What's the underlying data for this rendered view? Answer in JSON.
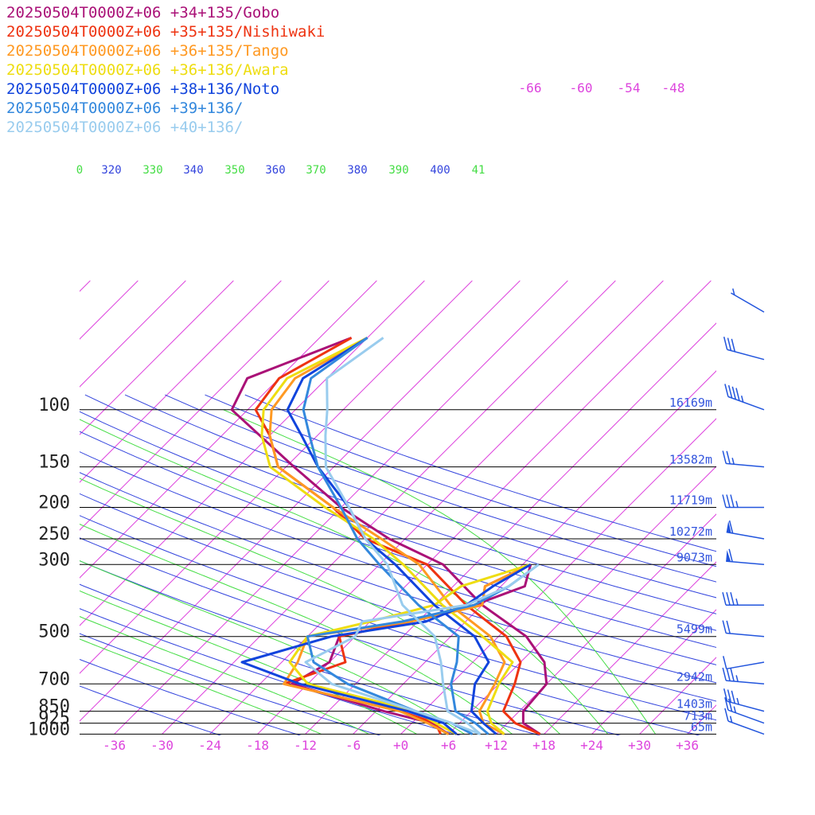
{
  "chart_data": {
    "type": "line",
    "title": "",
    "xlabel": "",
    "ylabel": "",
    "x_ticks": [
      "-36",
      "-30",
      "-24",
      "-18",
      "-12",
      "-6",
      "+0",
      "+6",
      "+12",
      "+18",
      "+24",
      "+30",
      "+36"
    ],
    "x_tick_values": [
      -36,
      -30,
      -24,
      -18,
      -12,
      -6,
      0,
      6,
      12,
      18,
      24,
      30,
      36
    ],
    "pressure_levels": [
      {
        "p": 100,
        "label": "100",
        "height": "16169m"
      },
      {
        "p": 150,
        "label": "150",
        "height": "13582m"
      },
      {
        "p": 200,
        "label": "200",
        "height": "11719m"
      },
      {
        "p": 250,
        "label": "250",
        "height": "10272m"
      },
      {
        "p": 300,
        "label": "300",
        "height": "9073m"
      },
      {
        "p": 500,
        "label": "500",
        "height": "5499m"
      },
      {
        "p": 700,
        "label": "700",
        "height": "2942m"
      },
      {
        "p": 850,
        "label": "850",
        "height": "1403m"
      },
      {
        "p": 925,
        "label": "925",
        "height": "713m"
      },
      {
        "p": 1000,
        "label": "1000",
        "height": "65m"
      }
    ],
    "upper_temp_labels": [
      "-66",
      "-60",
      "-54",
      "-48"
    ],
    "theta_labels": [
      "0",
      "320",
      "330",
      "340",
      "350",
      "360",
      "370",
      "380",
      "390",
      "400",
      "41"
    ],
    "colors": {
      "skewed_isotherm": "#dd44dd",
      "theta_dry": "#3344dd",
      "theta_moist": "#44dd44",
      "wind": "#2255dd"
    },
    "series": [
      {
        "name": "20250504T0000Z+06 +34+135/Gobo",
        "color": "#aa1177",
        "temp": [
          [
            1000,
            17.5
          ],
          [
            925,
            14
          ],
          [
            850,
            12.5
          ],
          [
            700,
            12
          ],
          [
            600,
            9
          ],
          [
            500,
            3.5
          ],
          [
            400,
            -6
          ],
          [
            300,
            -16
          ],
          [
            250,
            -26
          ],
          [
            200,
            -36
          ],
          [
            150,
            -47
          ],
          [
            100,
            -62
          ],
          [
            80,
            -64
          ],
          [
            60,
            -56
          ]
        ],
        "dewpoint": [
          [
            1000,
            6
          ],
          [
            925,
            2.5
          ],
          [
            850,
            -5
          ],
          [
            700,
            -20
          ],
          [
            600,
            -18
          ],
          [
            500,
            -20
          ],
          [
            450,
            -13
          ],
          [
            400,
            -7
          ],
          [
            350,
            -3
          ],
          [
            300,
            -5
          ]
        ]
      },
      {
        "name": "20250504T0000Z+06 +35+135/Nishiwaki",
        "color": "#ee3311",
        "temp": [
          [
            1000,
            17.5
          ],
          [
            925,
            13
          ],
          [
            850,
            10
          ],
          [
            700,
            8
          ],
          [
            600,
            6
          ],
          [
            500,
            1
          ],
          [
            400,
            -8
          ],
          [
            300,
            -18
          ],
          [
            250,
            -29
          ],
          [
            200,
            -37
          ],
          [
            150,
            -49
          ],
          [
            120,
            -54
          ],
          [
            100,
            -59
          ],
          [
            80,
            -60
          ],
          [
            60,
            -56
          ]
        ],
        "dewpoint": [
          [
            1000,
            5
          ],
          [
            925,
            3
          ],
          [
            850,
            -3
          ],
          [
            700,
            -21
          ],
          [
            600,
            -16
          ],
          [
            500,
            -20
          ],
          [
            450,
            -13
          ],
          [
            400,
            -6
          ],
          [
            350,
            -8
          ],
          [
            300,
            -5
          ]
        ]
      },
      {
        "name": "20250504T0000Z+06 +36+135/Tango",
        "color": "#ff9922",
        "temp": [
          [
            1000,
            13
          ],
          [
            925,
            9
          ],
          [
            850,
            7
          ],
          [
            700,
            5.5
          ],
          [
            600,
            4
          ],
          [
            500,
            -1
          ],
          [
            400,
            -10
          ],
          [
            300,
            -19
          ],
          [
            250,
            -27
          ],
          [
            200,
            -37
          ],
          [
            150,
            -49
          ],
          [
            120,
            -54
          ],
          [
            100,
            -57
          ],
          [
            80,
            -58
          ],
          [
            60,
            -54
          ]
        ],
        "dewpoint": [
          [
            1000,
            6
          ],
          [
            925,
            2
          ],
          [
            850,
            -3
          ],
          [
            700,
            -21
          ],
          [
            600,
            -22
          ],
          [
            500,
            -24
          ],
          [
            450,
            -13
          ],
          [
            400,
            -6
          ],
          [
            350,
            -8
          ],
          [
            300,
            -5
          ]
        ]
      },
      {
        "name": "20250504T0000Z+06 +36+136/Awara",
        "color": "#eedd11",
        "temp": [
          [
            1000,
            13
          ],
          [
            925,
            10
          ],
          [
            850,
            8
          ],
          [
            700,
            6
          ],
          [
            600,
            5
          ],
          [
            500,
            -2
          ],
          [
            400,
            -11
          ],
          [
            300,
            -21
          ],
          [
            250,
            -28
          ],
          [
            200,
            -38
          ],
          [
            150,
            -50
          ],
          [
            120,
            -55
          ],
          [
            100,
            -58
          ],
          [
            80,
            -59
          ],
          [
            60,
            -54
          ]
        ],
        "dewpoint": [
          [
            1000,
            7
          ],
          [
            925,
            3
          ],
          [
            850,
            -1
          ],
          [
            700,
            -18
          ],
          [
            600,
            -23
          ],
          [
            500,
            -24
          ],
          [
            450,
            -18
          ],
          [
            400,
            -12
          ],
          [
            350,
            -11
          ],
          [
            300,
            -5
          ]
        ]
      },
      {
        "name": "20250504T0000Z+06 +38+136/Noto",
        "color": "#1144dd",
        "temp": [
          [
            1000,
            12
          ],
          [
            925,
            9
          ],
          [
            850,
            6
          ],
          [
            700,
            3
          ],
          [
            600,
            2
          ],
          [
            500,
            -3
          ],
          [
            400,
            -12
          ],
          [
            300,
            -22
          ],
          [
            250,
            -29
          ],
          [
            200,
            -35
          ],
          [
            150,
            -44
          ],
          [
            120,
            -50
          ],
          [
            100,
            -55
          ],
          [
            80,
            -57
          ],
          [
            60,
            -54
          ]
        ],
        "dewpoint": [
          [
            1000,
            7
          ],
          [
            925,
            4
          ],
          [
            850,
            -2
          ],
          [
            700,
            -19
          ],
          [
            600,
            -29
          ],
          [
            500,
            -21
          ],
          [
            450,
            -11
          ],
          [
            400,
            -8
          ],
          [
            350,
            -7
          ],
          [
            300,
            -5
          ]
        ]
      },
      {
        "name": "20250504T0000Z+06 +39+136/",
        "color": "#3388dd",
        "temp": [
          [
            1000,
            11
          ],
          [
            925,
            8
          ],
          [
            850,
            4
          ],
          [
            700,
            0
          ],
          [
            600,
            -2
          ],
          [
            500,
            -5
          ],
          [
            400,
            -14
          ],
          [
            300,
            -24
          ],
          [
            250,
            -30
          ],
          [
            200,
            -36
          ],
          [
            150,
            -44
          ],
          [
            120,
            -49
          ],
          [
            100,
            -53
          ],
          [
            80,
            -56
          ],
          [
            60,
            -54
          ]
        ],
        "dewpoint": [
          [
            1000,
            9
          ],
          [
            925,
            5
          ],
          [
            850,
            -1
          ],
          [
            700,
            -13
          ],
          [
            600,
            -20
          ],
          [
            500,
            -24
          ],
          [
            450,
            -14
          ],
          [
            400,
            -7
          ],
          [
            350,
            -5
          ],
          [
            300,
            -4
          ]
        ]
      },
      {
        "name": "20250504T0000Z+06 +40+136/",
        "color": "#99ccee",
        "temp": [
          [
            1000,
            10
          ],
          [
            925,
            7
          ],
          [
            850,
            3
          ],
          [
            700,
            -1
          ],
          [
            600,
            -4
          ],
          [
            500,
            -8
          ],
          [
            400,
            -16
          ],
          [
            300,
            -23
          ],
          [
            250,
            -29
          ],
          [
            200,
            -35
          ],
          [
            150,
            -43
          ],
          [
            120,
            -47
          ],
          [
            100,
            -50
          ],
          [
            80,
            -54
          ],
          [
            60,
            -52
          ]
        ],
        "dewpoint": [
          [
            1000,
            10
          ],
          [
            925,
            5
          ],
          [
            850,
            -1
          ],
          [
            700,
            -15
          ],
          [
            600,
            -21
          ],
          [
            500,
            -18
          ],
          [
            450,
            -19
          ],
          [
            400,
            -8
          ],
          [
            350,
            -5
          ],
          [
            300,
            -4
          ]
        ]
      }
    ],
    "winds": [
      {
        "p": 1000,
        "speed_kt": 15,
        "dir": 250
      },
      {
        "p": 925,
        "speed_kt": 25,
        "dir": 250
      },
      {
        "p": 850,
        "speed_kt": 35,
        "dir": 255
      },
      {
        "p": 700,
        "speed_kt": 35,
        "dir": 265
      },
      {
        "p": 600,
        "speed_kt": 10,
        "dir": 280
      },
      {
        "p": 500,
        "speed_kt": 20,
        "dir": 265
      },
      {
        "p": 400,
        "speed_kt": 35,
        "dir": 270
      },
      {
        "p": 300,
        "speed_kt": 60,
        "dir": 265
      },
      {
        "p": 250,
        "speed_kt": 60,
        "dir": 260
      },
      {
        "p": 200,
        "speed_kt": 35,
        "dir": 270
      },
      {
        "p": 150,
        "speed_kt": 25,
        "dir": 265
      },
      {
        "p": 100,
        "speed_kt": 45,
        "dir": 250
      },
      {
        "p": 70,
        "speed_kt": 30,
        "dir": 255
      },
      {
        "p": 50,
        "speed_kt": 5,
        "dir": 240
      }
    ]
  }
}
